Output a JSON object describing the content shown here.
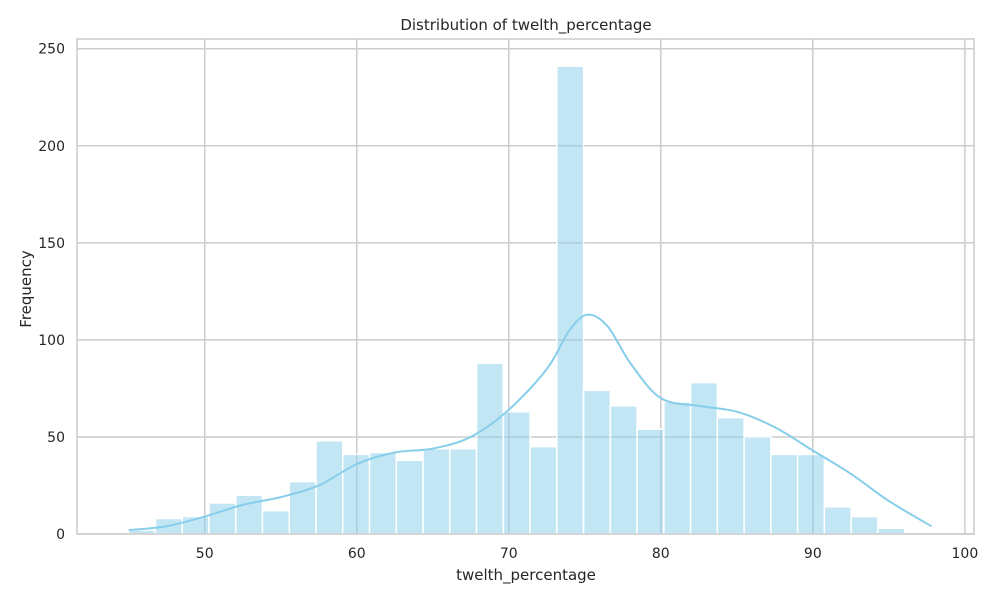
{
  "chart_data": {
    "type": "bar",
    "title": "Distribution of twelth_percentage",
    "xlabel": "twelth_percentage",
    "ylabel": "Frequency",
    "xlim": [
      41.6,
      100.6
    ],
    "ylim": [
      0,
      255
    ],
    "xticks": [
      50,
      60,
      70,
      80,
      90,
      100
    ],
    "yticks": [
      0,
      50,
      100,
      150,
      200,
      250
    ],
    "grid": true,
    "colors": {
      "bar_fill": "#87CEEB",
      "bar_fill_opacity": 0.5,
      "bar_edge": "#ffffff",
      "kde_line": "#87CEEB",
      "grid": "#cccccc",
      "frame": "#cccccc",
      "background": "#ffffff"
    },
    "bins": {
      "start": 45.0,
      "width": 1.76,
      "counts": [
        2,
        8,
        9,
        16,
        20,
        12,
        27,
        48,
        41,
        42,
        38,
        44,
        44,
        88,
        63,
        45,
        241,
        74,
        66,
        54,
        68,
        78,
        60,
        50,
        41,
        41,
        14,
        9,
        3
      ]
    },
    "kde": {
      "x": [
        45,
        47.5,
        50,
        52.5,
        55,
        57.5,
        60,
        62.5,
        65,
        67.5,
        70,
        72.5,
        74,
        75.2,
        76.5,
        78,
        80,
        82.5,
        85,
        87.5,
        90,
        92.5,
        95,
        97.8
      ],
      "y": [
        2,
        4,
        9,
        15,
        19,
        25,
        36,
        42,
        44,
        50,
        64,
        85,
        105,
        113,
        107,
        88,
        70,
        66,
        63,
        55,
        43,
        31,
        17,
        4
      ]
    }
  }
}
